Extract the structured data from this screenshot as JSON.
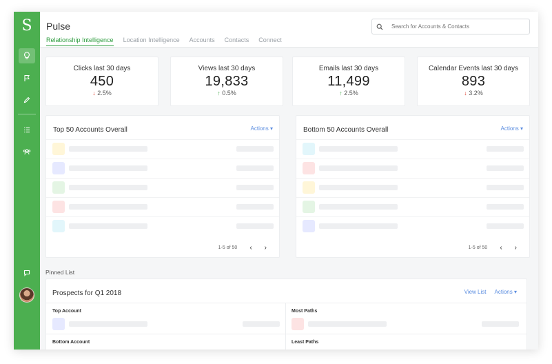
{
  "app": {
    "title": "Pulse"
  },
  "tabs": [
    {
      "label": "Relationship Intelligence",
      "active": true
    },
    {
      "label": "Location Intelligence",
      "active": false
    },
    {
      "label": "Accounts",
      "active": false
    },
    {
      "label": "Contacts",
      "active": false
    },
    {
      "label": "Connect",
      "active": false
    }
  ],
  "search": {
    "placeholder": "Search for Accounts & Contacts"
  },
  "stats": [
    {
      "label": "Clicks last 30 days",
      "value": "450",
      "change": "2.5%",
      "direction": "down"
    },
    {
      "label": "Views last 30 days",
      "value": "19,833",
      "change": "0.5%",
      "direction": "up"
    },
    {
      "label": "Emails last 30 days",
      "value": "11,499",
      "change": "2.5%",
      "direction": "up"
    },
    {
      "label": "Calendar Events last 30 days",
      "value": "893",
      "change": "3.2%",
      "direction": "down"
    }
  ],
  "top_panel": {
    "title": "Top 50 Accounts Overall",
    "actions": "Actions",
    "pager": "1-5 of 50",
    "row_colors": [
      "#fff6d8",
      "#e6e9ff",
      "#e4f5e4",
      "#fde3e3",
      "#e2f6fb"
    ]
  },
  "bottom_panel": {
    "title": "Bottom 50 Accounts Overall",
    "actions": "Actions",
    "pager": "1-5 of 50",
    "row_colors": [
      "#e2f6fb",
      "#fde3e3",
      "#fff6d8",
      "#e4f5e4",
      "#e6e9ff"
    ]
  },
  "pinned": {
    "section_label": "Pinned List",
    "title": "Prospects for Q1 2018",
    "view_list": "View List",
    "actions": "Actions",
    "cells": {
      "top_account": "Top Account",
      "most_paths": "Most Paths",
      "bottom_account": "Bottom Account",
      "least_paths": "Least Paths"
    },
    "colors": {
      "top_account": "#e6e9ff",
      "most_paths": "#fde3e3"
    }
  },
  "colors": {
    "sidebar": "#4caf50",
    "accent": "#2e9d3f",
    "link": "#5b8de0"
  }
}
